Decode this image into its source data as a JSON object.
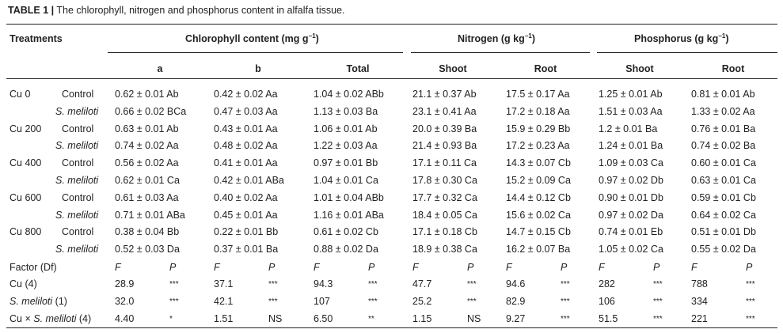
{
  "caption": {
    "label": "TABLE 1 |",
    "text": " The chlorophyll, nitrogen and phosphorus content in alfalfa tissue."
  },
  "header": {
    "treatments": "Treatments",
    "chlorophyll": "Chlorophyll content (mg g",
    "chlorophyll_sup": "−1",
    "nitrogen": "Nitrogen (g kg",
    "nitrogen_sup": "−1",
    "phosphorus": "Phosphorus (g kg",
    "phosphorus_sup": "−1",
    "close": ")",
    "sub": [
      "a",
      "b",
      "Total",
      "Shoot",
      "Root",
      "Shoot",
      "Root"
    ]
  },
  "rows": [
    {
      "group": "Cu 0",
      "treatment": "Control",
      "values": [
        "0.62 ± 0.01 Ab",
        "0.42 ± 0.02 Aa",
        "1.04 ± 0.02 ABb",
        "21.1 ± 0.37 Ab",
        "17.5 ± 0.17 Aa",
        "1.25 ± 0.01 Ab",
        "0.81 ± 0.01 Ab"
      ]
    },
    {
      "group": "",
      "treatment": "S. meliloti",
      "values": [
        "0.66 ± 0.02 BCa",
        "0.47 ± 0.03 Aa",
        "1.13 ± 0.03 Ba",
        "23.1 ± 0.41 Aa",
        "17.2 ± 0.18 Aa",
        "1.51 ± 0.03 Aa",
        "1.33 ± 0.02 Aa"
      ]
    },
    {
      "group": "Cu 200",
      "treatment": "Control",
      "values": [
        "0.63 ± 0.01 Ab",
        "0.43 ± 0.01 Aa",
        "1.06 ± 0.01 Ab",
        "20.0 ± 0.39 Ba",
        "15.9 ± 0.29 Bb",
        "1.2 ± 0.01 Ba",
        "0.76 ± 0.01 Ba"
      ]
    },
    {
      "group": "",
      "treatment": "S. meliloti",
      "values": [
        "0.74 ± 0.02 Aa",
        "0.48 ± 0.02 Aa",
        "1.22 ± 0.03 Aa",
        "21.4 ± 0.93 Ba",
        "17.2 ± 0.23 Aa",
        "1.24 ± 0.01 Ba",
        "0.74 ± 0.02 Ba"
      ]
    },
    {
      "group": "Cu 400",
      "treatment": "Control",
      "values": [
        "0.56 ± 0.02 Aa",
        "0.41 ± 0.01 Aa",
        "0.97 ± 0.01 Bb",
        "17.1 ± 0.11 Ca",
        "14.3 ± 0.07 Cb",
        "1.09 ± 0.03 Ca",
        "0.60 ± 0.01 Ca"
      ]
    },
    {
      "group": "",
      "treatment": "S. meliloti",
      "values": [
        "0.62 ± 0.01 Ca",
        "0.42 ± 0.01 ABa",
        "1.04 ± 0.01 Ca",
        "17.8 ± 0.30 Ca",
        "15.2 ± 0.09 Ca",
        "0.97 ± 0.02 Db",
        "0.63 ± 0.01 Ca"
      ]
    },
    {
      "group": "Cu 600",
      "treatment": "Control",
      "values": [
        "0.61 ± 0.03 Aa",
        "0.40 ± 0.02 Aa",
        "1.01 ± 0.04 ABb",
        "17.7 ± 0.32 Ca",
        "14.4 ± 0.12 Cb",
        "0.90 ± 0.01 Db",
        "0.59 ± 0.01 Cb"
      ]
    },
    {
      "group": "",
      "treatment": "S. meliloti",
      "values": [
        "0.71 ± 0.01 ABa",
        "0.45 ± 0.01 Aa",
        "1.16 ± 0.01 ABa",
        "18.4 ± 0.05 Ca",
        "15.6 ± 0.02 Ca",
        "0.97 ± 0.02 Da",
        "0.64 ± 0.02 Ca"
      ]
    },
    {
      "group": "Cu 800",
      "treatment": "Control",
      "values": [
        "0.38 ± 0.04 Bb",
        "0.22 ± 0.01 Bb",
        "0.61 ± 0.02 Cb",
        "17.1 ± 0.18 Cb",
        "14.7 ± 0.15 Cb",
        "0.74 ± 0.01 Eb",
        "0.51 ± 0.01 Db"
      ]
    },
    {
      "group": "",
      "treatment": "S. meliloti",
      "values": [
        "0.52 ± 0.03 Da",
        "0.37 ± 0.01 Ba",
        "0.88 ± 0.02 Da",
        "18.9 ± 0.38 Ca",
        "16.2 ± 0.07 Ba",
        "1.05 ± 0.02 Ca",
        "0.55 ± 0.02 Da"
      ]
    }
  ],
  "factor_header": {
    "label": "Factor (Df)",
    "cols": [
      "F",
      "P",
      "F",
      "P",
      "F",
      "P",
      "F",
      "P",
      "F",
      "P",
      "F",
      "P",
      "F",
      "P"
    ]
  },
  "factors": [
    {
      "label": "Cu (4)",
      "label_italic": "",
      "label_rest": "",
      "vals": [
        "28.9",
        "***",
        "37.1",
        "***",
        "94.3",
        "***",
        "47.7",
        "***",
        "94.6",
        "***",
        "282",
        "***",
        "788",
        "***"
      ]
    },
    {
      "label": "",
      "label_italic": "S. meliloti",
      "label_rest": " (1)",
      "vals": [
        "32.0",
        "***",
        "42.1",
        "***",
        "107",
        "***",
        "25.2",
        "***",
        "82.9",
        "***",
        "106",
        "***",
        "334",
        "***"
      ]
    },
    {
      "label": "Cu × ",
      "label_italic": "S. meliloti",
      "label_rest": " (4)",
      "vals": [
        "4.40",
        "*",
        "1.51",
        "NS",
        "6.50",
        "**",
        "1.15",
        "NS",
        "9.27",
        "***",
        "51.5",
        "***",
        "221",
        "***"
      ]
    }
  ]
}
